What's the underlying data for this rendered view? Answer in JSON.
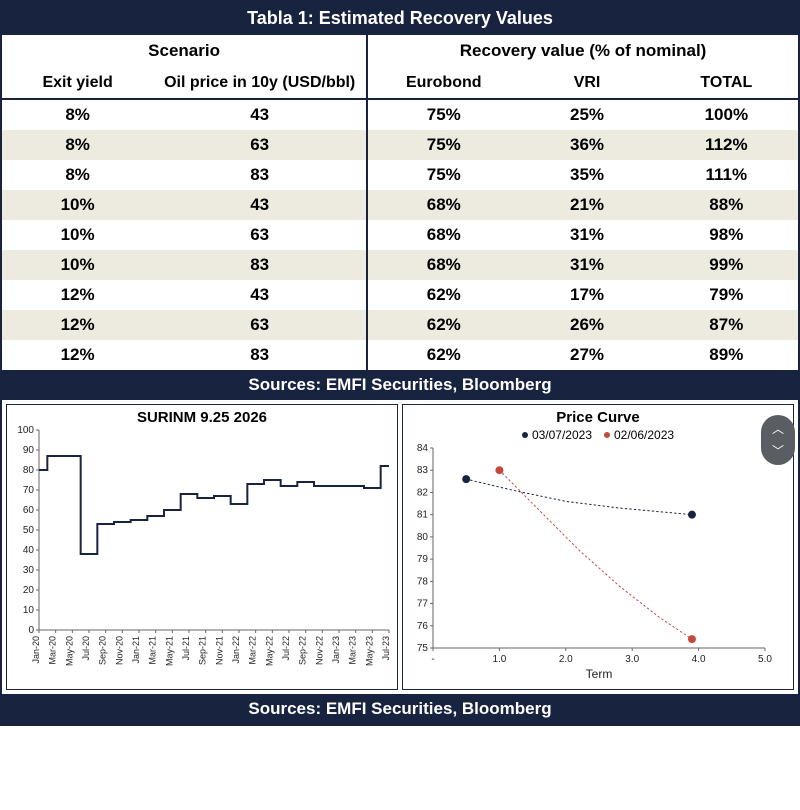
{
  "table": {
    "title": "Tabla 1: Estimated Recovery Values",
    "group_headers": {
      "left": "Scenario",
      "right": "Recovery value (% of nominal)"
    },
    "columns": [
      "Exit yield",
      "Oil price in 10y (USD/bbl)",
      "Eurobond",
      "VRI",
      "TOTAL"
    ],
    "rows": [
      [
        "8%",
        "43",
        "75%",
        "25%",
        "100%"
      ],
      [
        "8%",
        "63",
        "75%",
        "36%",
        "112%"
      ],
      [
        "8%",
        "83",
        "75%",
        "35%",
        "111%"
      ],
      [
        "10%",
        "43",
        "68%",
        "21%",
        "88%"
      ],
      [
        "10%",
        "63",
        "68%",
        "31%",
        "98%"
      ],
      [
        "10%",
        "83",
        "68%",
        "31%",
        "99%"
      ],
      [
        "12%",
        "43",
        "62%",
        "17%",
        "79%"
      ],
      [
        "12%",
        "63",
        "62%",
        "26%",
        "87%"
      ],
      [
        "12%",
        "83",
        "62%",
        "27%",
        "89%"
      ]
    ],
    "sources": "Sources: EMFI Securities, Bloomberg",
    "colors": {
      "header_bg": "#17233f",
      "header_text": "#ffffff",
      "row_odd_bg": "#ffffff",
      "row_even_bg": "#edeae0",
      "border": "#17233f",
      "text": "#1a1a1a"
    },
    "font_size_title": 18,
    "font_size_header": 17,
    "font_size_body": 17
  },
  "chart_left": {
    "type": "line",
    "title": "SURINM 9.25 2026",
    "x_labels": [
      "Jan-20",
      "Mar-20",
      "May-20",
      "Jul-20",
      "Sep-20",
      "Nov-20",
      "Jan-21",
      "Mar-21",
      "May-21",
      "Jul-21",
      "Sep-21",
      "Nov-21",
      "Jan-22",
      "Mar-22",
      "May-22",
      "Jul-22",
      "Sep-22",
      "Nov-22",
      "Jan-23",
      "Mar-23",
      "May-23",
      "Jul-23"
    ],
    "y_ticks": [
      0,
      10,
      20,
      30,
      40,
      50,
      60,
      70,
      80,
      90,
      100
    ],
    "ylim": [
      0,
      100
    ],
    "xlim": [
      0,
      21
    ],
    "series": {
      "color": "#17233f",
      "line_width": 2,
      "values": [
        80,
        87,
        87,
        38,
        53,
        54,
        55,
        57,
        60,
        68,
        66,
        67,
        63,
        73,
        75,
        72,
        74,
        72,
        72,
        72,
        71,
        82
      ]
    },
    "background_color": "#ffffff",
    "grid": false,
    "title_fontsize": 15,
    "tick_fontsize": 10
  },
  "chart_right": {
    "type": "scatter-line",
    "title": "Price Curve",
    "legend": [
      {
        "label": "03/07/2023",
        "color": "#17233f"
      },
      {
        "label": "02/06/2023",
        "color": "#c24a3a"
      }
    ],
    "x_ticks": [
      "-",
      "1.0",
      "2.0",
      "3.0",
      "4.0",
      "5.0"
    ],
    "x_positions": [
      0,
      1,
      2,
      3,
      4,
      5
    ],
    "xlim": [
      0,
      5
    ],
    "xlabel": "Term",
    "y_ticks": [
      75,
      76,
      77,
      78,
      79,
      80,
      81,
      82,
      83,
      84
    ],
    "ylim": [
      75,
      84
    ],
    "series": [
      {
        "name": "03/07/2023",
        "color": "#17233f",
        "marker": "circle",
        "marker_size": 4,
        "line_style": "dotted",
        "points": [
          {
            "x": 0.5,
            "y": 82.6
          },
          {
            "x": 3.9,
            "y": 81.0
          }
        ],
        "curve": [
          {
            "x": 0.5,
            "y": 82.6
          },
          {
            "x": 1.2,
            "y": 82.1
          },
          {
            "x": 2.0,
            "y": 81.6
          },
          {
            "x": 2.8,
            "y": 81.3
          },
          {
            "x": 3.9,
            "y": 81.0
          }
        ]
      },
      {
        "name": "02/06/2023",
        "color": "#c24a3a",
        "marker": "circle",
        "marker_size": 4,
        "line_style": "dotted",
        "points": [
          {
            "x": 1.0,
            "y": 83.0
          },
          {
            "x": 3.9,
            "y": 75.4
          }
        ],
        "curve": [
          {
            "x": 1.0,
            "y": 83.0
          },
          {
            "x": 1.6,
            "y": 81.2
          },
          {
            "x": 2.2,
            "y": 79.4
          },
          {
            "x": 2.8,
            "y": 77.8
          },
          {
            "x": 3.4,
            "y": 76.4
          },
          {
            "x": 3.9,
            "y": 75.4
          }
        ]
      }
    ],
    "background_color": "#ffffff",
    "grid": false,
    "title_fontsize": 15,
    "tick_fontsize": 10
  },
  "bottom_sources": "Sources: EMFI Securities, Bloomberg"
}
